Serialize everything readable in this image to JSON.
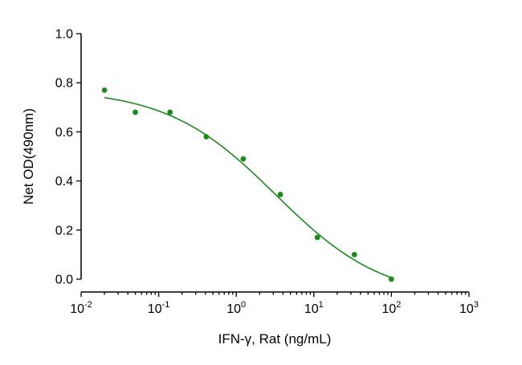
{
  "chart_data": {
    "type": "scatter",
    "xlabel": "IFN-γ, Rat (ng/mL)",
    "ylabel": "Net OD(490nm)",
    "x_scale": "log",
    "xlim": [
      0.01,
      1000
    ],
    "ylim": [
      0.0,
      1.0
    ],
    "y_ticks": [
      "0.0",
      "0.2",
      "0.4",
      "0.6",
      "0.8",
      "1.0"
    ],
    "x_ticks": [
      {
        "base": "10",
        "exp": "-2"
      },
      {
        "base": "10",
        "exp": "-1"
      },
      {
        "base": "10",
        "exp": "0"
      },
      {
        "base": "10",
        "exp": "1"
      },
      {
        "base": "10",
        "exp": "2"
      },
      {
        "base": "10",
        "exp": "3"
      }
    ],
    "grid": false,
    "series": [
      {
        "color": "#1a8a1a",
        "points": [
          {
            "x": 0.02,
            "y": 0.77
          },
          {
            "x": 0.05,
            "y": 0.68
          },
          {
            "x": 0.14,
            "y": 0.68
          },
          {
            "x": 0.41,
            "y": 0.58
          },
          {
            "x": 1.23,
            "y": 0.49
          },
          {
            "x": 3.7,
            "y": 0.345
          },
          {
            "x": 11.1,
            "y": 0.17
          },
          {
            "x": 33.3,
            "y": 0.1
          },
          {
            "x": 100,
            "y": 0.0
          }
        ],
        "fit": {
          "model": "4PL",
          "top": 0.775,
          "bottom": -0.085,
          "ec50": 3.2,
          "hill": 0.62
        }
      }
    ]
  }
}
